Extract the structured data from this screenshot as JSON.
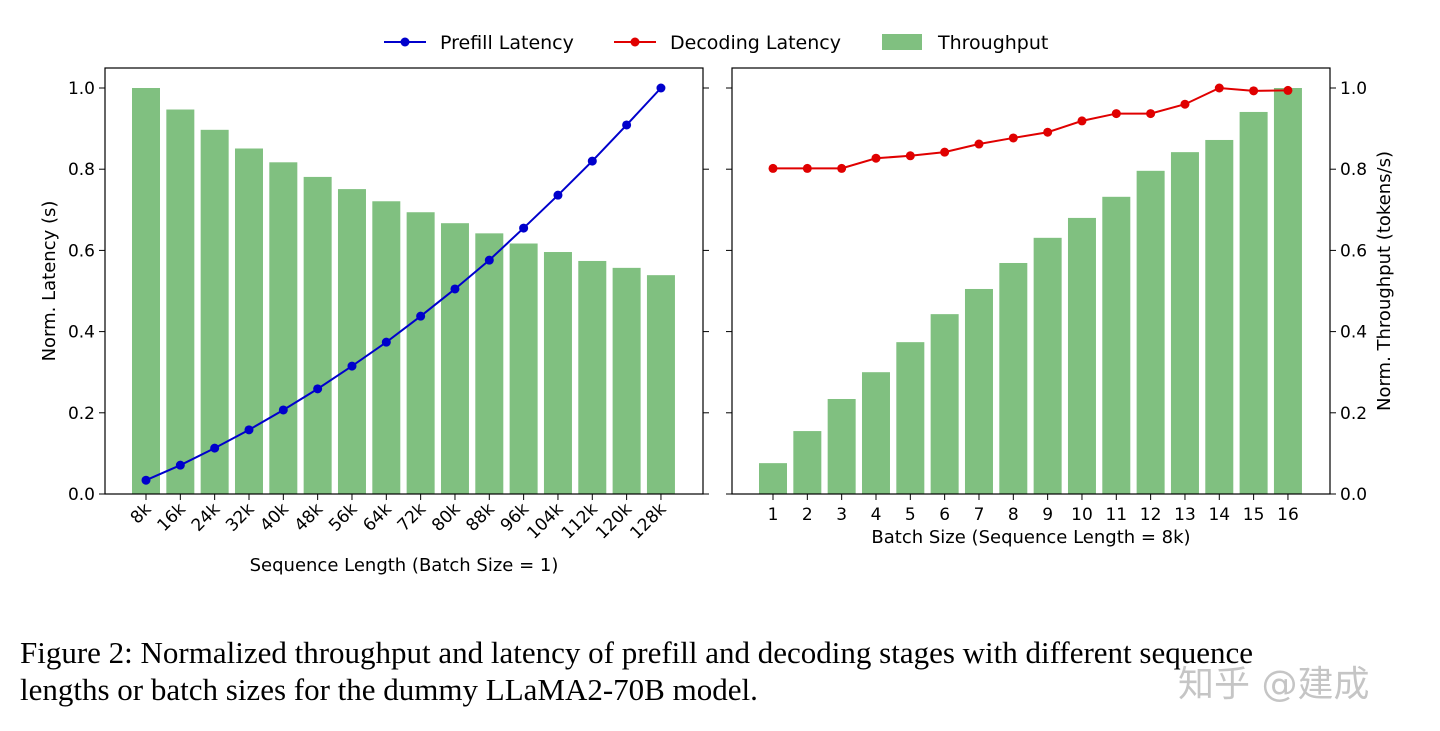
{
  "legend": {
    "placement": "top-center",
    "items": [
      {
        "label": "Prefill Latency",
        "color": "#0000cc",
        "kind": "line-marker"
      },
      {
        "label": "Decoding Latency",
        "color": "#e00000",
        "kind": "line-marker"
      },
      {
        "label": "Throughput",
        "color": "#80c080",
        "kind": "bar"
      }
    ]
  },
  "chart_data": [
    {
      "type": "bar+line",
      "xlabel": "Sequence Length (Batch Size = 1)",
      "ylabel": "Norm. Latency (s)",
      "ylim": [
        0,
        1.05
      ],
      "yticks": [
        "0.0",
        "0.2",
        "0.4",
        "0.6",
        "0.8",
        "1.0"
      ],
      "grid": false,
      "categories": [
        "8k",
        "16k",
        "24k",
        "32k",
        "40k",
        "48k",
        "56k",
        "64k",
        "72k",
        "80k",
        "88k",
        "96k",
        "104k",
        "112k",
        "120k",
        "128k"
      ],
      "series": [
        {
          "name": "Throughput",
          "type": "bar",
          "color": "#80c080",
          "values": [
            1.0,
            0.947,
            0.897,
            0.851,
            0.817,
            0.781,
            0.751,
            0.721,
            0.694,
            0.667,
            0.642,
            0.617,
            0.596,
            0.574,
            0.557,
            0.539
          ]
        },
        {
          "name": "Prefill Latency",
          "type": "line",
          "color": "#0000cc",
          "values": [
            0.034,
            0.071,
            0.113,
            0.158,
            0.207,
            0.259,
            0.315,
            0.374,
            0.438,
            0.505,
            0.576,
            0.655,
            0.736,
            0.82,
            0.909,
            1.0
          ]
        }
      ]
    },
    {
      "type": "bar+line",
      "xlabel": "Batch Size (Sequence Length = 8k)",
      "ylabel": "Norm. Throughput (tokens/s)",
      "ylim": [
        0,
        1.05
      ],
      "yticks": [
        "0.0",
        "0.2",
        "0.4",
        "0.6",
        "0.8",
        "1.0"
      ],
      "yaxis_side": "right",
      "grid": false,
      "categories": [
        "1",
        "2",
        "3",
        "4",
        "5",
        "6",
        "7",
        "8",
        "9",
        "10",
        "11",
        "12",
        "13",
        "14",
        "15",
        "16"
      ],
      "series": [
        {
          "name": "Throughput",
          "type": "bar",
          "color": "#80c080",
          "values": [
            0.076,
            0.155,
            0.234,
            0.3,
            0.374,
            0.443,
            0.505,
            0.569,
            0.631,
            0.68,
            0.732,
            0.796,
            0.842,
            0.872,
            0.941,
            1.0
          ]
        },
        {
          "name": "Decoding Latency",
          "type": "line",
          "color": "#e00000",
          "values": [
            0.802,
            0.802,
            0.802,
            0.827,
            0.833,
            0.842,
            0.862,
            0.877,
            0.891,
            0.919,
            0.937,
            0.937,
            0.96,
            1.0,
            0.993,
            0.994
          ]
        }
      ]
    }
  ],
  "caption": {
    "line1": "Figure 2: Normalized throughput and latency of prefill and decoding stages with different sequence",
    "line2": "lengths or batch sizes for the dummy LLaMA2-70B model."
  },
  "watermark": "知乎 @建成"
}
